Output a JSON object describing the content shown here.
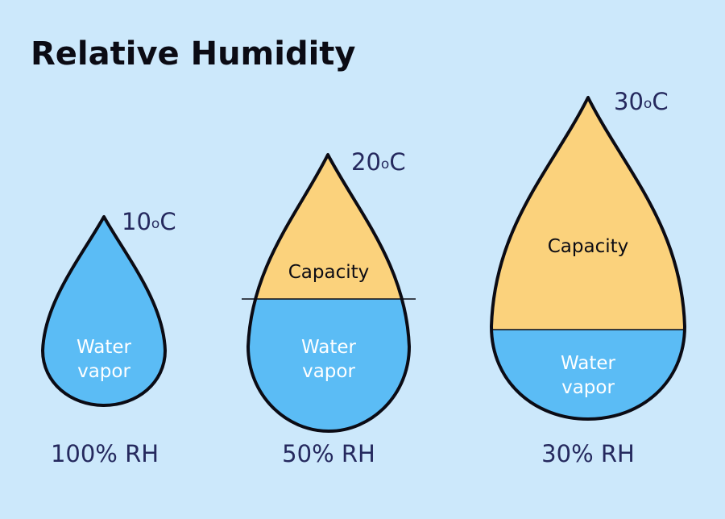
{
  "title": "Relative Humidity",
  "colors": {
    "background": "#cce8fb",
    "water_vapor": "#5bbcf5",
    "capacity": "#fbd27c",
    "outline": "#0b0b14",
    "label_text": "#25295e"
  },
  "drops": [
    {
      "temperature": {
        "value": "10",
        "degree": "o",
        "unit": "C"
      },
      "capacity_label": "",
      "water_label_line1": "Water",
      "water_label_line2": "vapor",
      "rh_label": "100% RH"
    },
    {
      "temperature": {
        "value": "20",
        "degree": "o",
        "unit": "C"
      },
      "capacity_label": "Capacity",
      "water_label_line1": "Water",
      "water_label_line2": "vapor",
      "rh_label": "50% RH"
    },
    {
      "temperature": {
        "value": "30",
        "degree": "o",
        "unit": "C"
      },
      "capacity_label": "Capacity",
      "water_label_line1": "Water",
      "water_label_line2": "vapor",
      "rh_label": "30% RH"
    }
  ]
}
